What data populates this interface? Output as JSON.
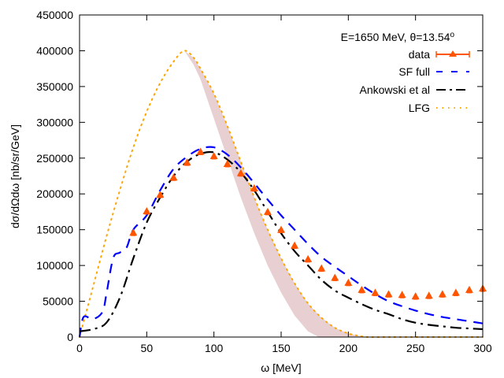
{
  "chart_data": {
    "type": "line",
    "title": "E=1650 MeV, θ=13.54°",
    "title_main": "E=1650 MeV, θ=13.54",
    "title_sup": "o",
    "xlabel": "ω [MeV]",
    "ylabel": "dσ/dΩdω [nb/sr/GeV]",
    "xlim": [
      0,
      300
    ],
    "ylim": [
      0,
      450000
    ],
    "xticks": [
      0,
      50,
      100,
      150,
      200,
      250,
      300
    ],
    "xtick_labels": [
      "0",
      "50",
      "100",
      "150",
      "200",
      "250",
      "300"
    ],
    "yticks": [
      0,
      50000,
      100000,
      150000,
      200000,
      250000,
      300000,
      350000,
      400000,
      450000
    ],
    "ytick_labels": [
      "0",
      "50000",
      "100000",
      "150000",
      "200000",
      "250000",
      "300000",
      "350000",
      "400000",
      "450000"
    ],
    "grid": false,
    "legend_position": "top-right",
    "band": {
      "name": "LFG uncertainty band",
      "color": "#e8cfd2",
      "upper": [
        [
          0,
          0
        ],
        [
          10,
          70000
        ],
        [
          20,
          140000
        ],
        [
          30,
          205000
        ],
        [
          40,
          265000
        ],
        [
          50,
          315000
        ],
        [
          60,
          355000
        ],
        [
          70,
          385000
        ],
        [
          78,
          400000
        ],
        [
          85,
          390000
        ],
        [
          90,
          375000
        ],
        [
          100,
          340000
        ],
        [
          110,
          295000
        ],
        [
          120,
          245000
        ],
        [
          130,
          195000
        ],
        [
          140,
          150000
        ],
        [
          150,
          110000
        ],
        [
          160,
          75000
        ],
        [
          170,
          47000
        ],
        [
          180,
          27000
        ],
        [
          190,
          13000
        ],
        [
          200,
          5000
        ],
        [
          210,
          1000
        ],
        [
          215,
          0
        ]
      ],
      "lower": [
        [
          0,
          0
        ],
        [
          10,
          70000
        ],
        [
          20,
          140000
        ],
        [
          30,
          205000
        ],
        [
          40,
          265000
        ],
        [
          50,
          315000
        ],
        [
          60,
          355000
        ],
        [
          70,
          385000
        ],
        [
          78,
          400000
        ],
        [
          85,
          380000
        ],
        [
          90,
          360000
        ],
        [
          100,
          305000
        ],
        [
          110,
          250000
        ],
        [
          120,
          195000
        ],
        [
          130,
          145000
        ],
        [
          140,
          100000
        ],
        [
          150,
          62000
        ],
        [
          160,
          30000
        ],
        [
          170,
          8000
        ],
        [
          178,
          0
        ]
      ]
    },
    "series": [
      {
        "name": "data",
        "style": "points-errorbars",
        "color": "#ff5500",
        "x": [
          40,
          50,
          60,
          70,
          80,
          90,
          100,
          110,
          120,
          130,
          140,
          150,
          160,
          170,
          180,
          190,
          200,
          210,
          220,
          230,
          240,
          250,
          260,
          270,
          280,
          290,
          300
        ],
        "values": [
          145000,
          175000,
          198000,
          222000,
          243000,
          258000,
          252000,
          241000,
          228000,
          207000,
          174000,
          149000,
          127000,
          108000,
          95000,
          82000,
          75000,
          65000,
          61000,
          59000,
          58000,
          56000,
          57000,
          59000,
          61000,
          65000,
          67000
        ]
      },
      {
        "name": "SF full",
        "style": "dashed",
        "color": "#0000ff",
        "x": [
          0,
          3,
          10,
          17,
          20,
          25,
          30,
          35,
          40,
          50,
          60,
          70,
          80,
          90,
          100,
          110,
          120,
          130,
          140,
          150,
          160,
          170,
          180,
          190,
          200,
          210,
          220,
          230,
          240,
          250,
          260,
          270,
          280,
          290,
          300
        ],
        "values": [
          0,
          28000,
          25000,
          35000,
          60000,
          110000,
          118000,
          125000,
          150000,
          170000,
          205000,
          235000,
          252000,
          263000,
          265000,
          255000,
          237000,
          215000,
          192000,
          170000,
          150000,
          130000,
          112000,
          98000,
          85000,
          72000,
          60000,
          50000,
          43000,
          37000,
          32000,
          28000,
          25000,
          22000,
          19000
        ]
      },
      {
        "name": "Ankowski et al",
        "style": "dash-dot",
        "color": "#000000",
        "x": [
          0,
          10,
          20,
          30,
          40,
          50,
          60,
          70,
          80,
          90,
          100,
          110,
          120,
          130,
          140,
          150,
          160,
          170,
          180,
          190,
          200,
          210,
          220,
          230,
          240,
          250,
          260,
          270,
          280,
          290,
          300
        ],
        "values": [
          8000,
          11000,
          20000,
          55000,
          110000,
          160000,
          195000,
          225000,
          245000,
          256000,
          258000,
          248000,
          230000,
          205000,
          175000,
          145000,
          120000,
          100000,
          80000,
          65000,
          55000,
          46000,
          38000,
          32000,
          25000,
          20000,
          17000,
          15000,
          13000,
          12000,
          11000
        ]
      },
      {
        "name": "LFG",
        "style": "dotted",
        "color": "#ffa500",
        "x": [
          0,
          10,
          20,
          30,
          40,
          50,
          60,
          70,
          78,
          85,
          90,
          100,
          110,
          120,
          130,
          140,
          150,
          160,
          170,
          180,
          190,
          200,
          210,
          215,
          230,
          250,
          270,
          300
        ],
        "values": [
          0,
          70000,
          140000,
          205000,
          265000,
          315000,
          355000,
          385000,
          400000,
          390000,
          375000,
          340000,
          295000,
          245000,
          195000,
          150000,
          110000,
          75000,
          47000,
          27000,
          13000,
          5000,
          1000,
          0,
          0,
          0,
          0,
          0
        ]
      }
    ]
  }
}
